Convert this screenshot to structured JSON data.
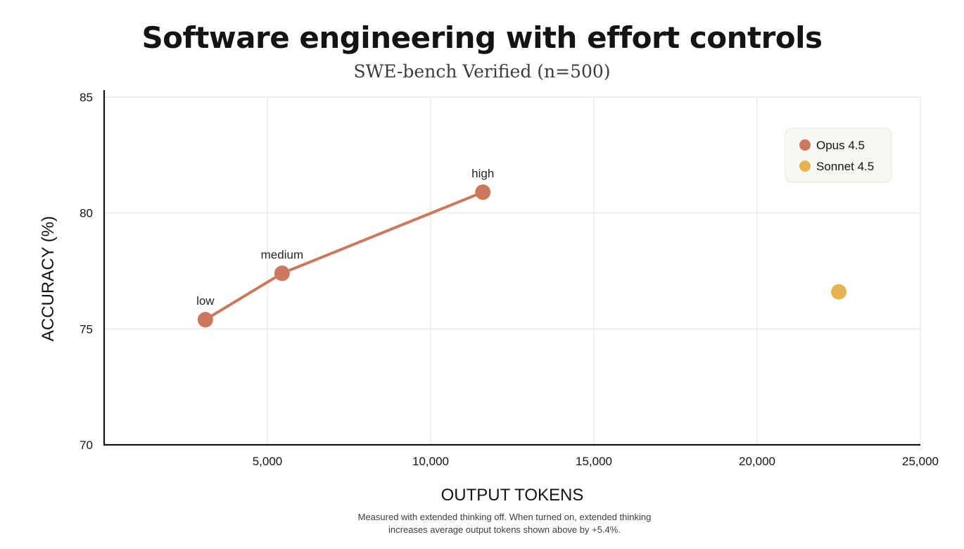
{
  "chart_data": {
    "type": "line",
    "title": "Software engineering with effort controls",
    "subtitle": "SWE-bench Verified (n=500)",
    "xlabel": "OUTPUT TOKENS",
    "ylabel": "ACCURACY (%)",
    "xlim": [
      0,
      25000
    ],
    "ylim": [
      70,
      85
    ],
    "x_ticks": [
      5000,
      10000,
      15000,
      20000,
      25000
    ],
    "x_tick_labels": [
      "5,000",
      "10,000",
      "15,000",
      "20,000",
      "25,000"
    ],
    "y_ticks": [
      70,
      75,
      80,
      85
    ],
    "y_tick_labels": [
      "70",
      "75",
      "80",
      "85"
    ],
    "grid": true,
    "legend_position": "top-right",
    "series": [
      {
        "name": "Opus 4.5",
        "color": "#cc785c",
        "connected": true,
        "points": [
          {
            "x": 3100,
            "y": 75.4,
            "label": "low"
          },
          {
            "x": 5450,
            "y": 77.4,
            "label": "medium"
          },
          {
            "x": 11600,
            "y": 80.9,
            "label": "high"
          }
        ]
      },
      {
        "name": "Sonnet 4.5",
        "color": "#e5b451",
        "connected": false,
        "points": [
          {
            "x": 22500,
            "y": 76.6,
            "label": ""
          }
        ]
      }
    ],
    "footnote": [
      "Measured with extended thinking off. When turned on, extended thinking",
      "increases average output tokens shown above by +5.4%."
    ]
  }
}
